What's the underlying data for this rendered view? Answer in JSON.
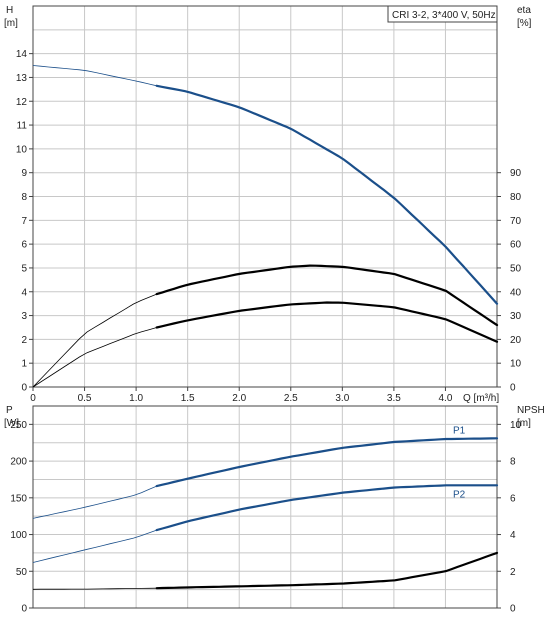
{
  "chart_data": [
    {
      "type": "line",
      "title": "CRI 3-2, 3*400 V, 50Hz",
      "xlabel": "Q [m³/h]",
      "xlim": [
        0,
        4.5
      ],
      "x_ticks": [
        "0",
        "0.5",
        "1.0",
        "1.5",
        "2.0",
        "2.5",
        "3.0",
        "3.5",
        "4.0"
      ],
      "y_left": {
        "label": "H",
        "unit": "[m]",
        "lim": [
          0,
          16
        ],
        "ticks": [
          "0",
          "1",
          "2",
          "3",
          "4",
          "5",
          "6",
          "7",
          "8",
          "9",
          "10",
          "11",
          "12",
          "13",
          "14"
        ]
      },
      "y_right": {
        "label": "eta",
        "unit": "[%]",
        "lim": [
          0,
          160
        ],
        "ticks": [
          "0",
          "10",
          "20",
          "30",
          "40",
          "50",
          "60",
          "70",
          "80",
          "90"
        ]
      },
      "grid": true,
      "series": [
        {
          "axis": "left",
          "color": "#1b4f8a",
          "x": [
            0,
            0.5,
            1.0,
            1.2,
            1.5,
            2.0,
            2.5,
            3.0,
            3.5,
            4.0,
            4.5
          ],
          "y": [
            13.5,
            13.3,
            12.85,
            12.65,
            12.4,
            11.75,
            10.85,
            9.6,
            7.95,
            5.9,
            3.5
          ]
        },
        {
          "axis": "right",
          "color": "#000000",
          "x": [
            0,
            0.5,
            1.0,
            1.2,
            1.5,
            2.0,
            2.5,
            2.7,
            3.0,
            3.5,
            4.0,
            4.5
          ],
          "y": [
            0,
            22.5,
            35.5,
            39,
            43,
            47.5,
            50.5,
            51,
            50.5,
            47.5,
            40.5,
            26
          ]
        },
        {
          "axis": "right",
          "color": "#000000",
          "x": [
            0,
            0.5,
            1.0,
            1.2,
            1.5,
            2.0,
            2.5,
            2.85,
            3.0,
            3.5,
            4.0,
            4.5
          ],
          "y": [
            0,
            14,
            22.5,
            25,
            28,
            32,
            34.7,
            35.5,
            35.4,
            33.5,
            28.5,
            19
          ]
        }
      ]
    },
    {
      "type": "line",
      "xlim": [
        0,
        4.5
      ],
      "y_left": {
        "label": "P",
        "unit": "[W]",
        "lim": [
          0,
          275
        ],
        "ticks": [
          "0",
          "50",
          "100",
          "150",
          "200",
          "250"
        ]
      },
      "y_right": {
        "label": "NPSH",
        "unit": "[m]",
        "lim": [
          0,
          11
        ],
        "ticks": [
          "0",
          "2",
          "4",
          "6",
          "8",
          "10"
        ]
      },
      "grid": true,
      "series": [
        {
          "name": "P1",
          "axis": "left",
          "color": "#1b4f8a",
          "x": [
            0,
            0.5,
            1.0,
            1.2,
            1.5,
            2.0,
            2.5,
            3.0,
            3.5,
            4.0,
            4.5
          ],
          "y": [
            122,
            137,
            154,
            166,
            176,
            192,
            206,
            218,
            226,
            230,
            231
          ]
        },
        {
          "name": "P2",
          "axis": "left",
          "color": "#1b4f8a",
          "x": [
            0,
            0.5,
            1.0,
            1.2,
            1.5,
            2.0,
            2.5,
            3.0,
            3.5,
            4.0,
            4.5
          ],
          "y": [
            62,
            79,
            96,
            106,
            118,
            134,
            147,
            157,
            164,
            167,
            167
          ]
        },
        {
          "axis": "right",
          "color": "#000000",
          "x": [
            0,
            0.5,
            1.0,
            1.2,
            1.5,
            2.0,
            2.5,
            3.0,
            3.5,
            4.0,
            4.5
          ],
          "y": [
            1.02,
            1.03,
            1.06,
            1.08,
            1.12,
            1.18,
            1.24,
            1.33,
            1.5,
            2.0,
            3.0
          ]
        }
      ]
    }
  ]
}
